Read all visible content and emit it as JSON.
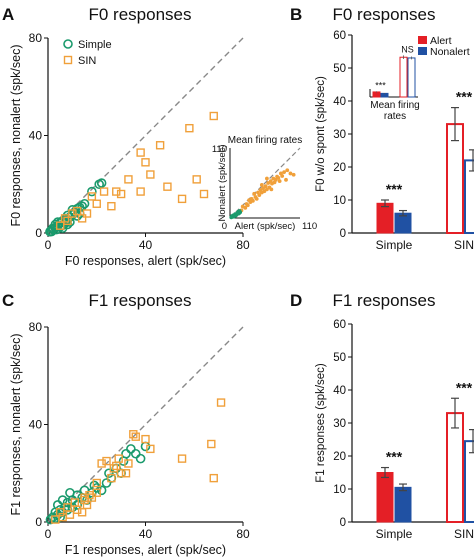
{
  "colors": {
    "simple": "#1a9a6c",
    "sin": "#f0a03a",
    "alert": "#e41f26",
    "nonalert": "#2051a3",
    "diagonal": "#888888",
    "axis": "#111111"
  },
  "chart_data": [
    {
      "id": "A",
      "panel_letter": "A",
      "type": "scatter",
      "title": "F0 responses",
      "xlabel": "F0 responses, alert (spk/sec)",
      "ylabel": "F0 responses, nonalert (spk/sec)",
      "xlim": [
        0,
        80
      ],
      "ylim": [
        0,
        80
      ],
      "xticks": [
        "0",
        "40",
        "80"
      ],
      "yticks": [
        "0",
        "40",
        "80"
      ],
      "legend": {
        "placement": "top-left",
        "entries": [
          "Simple",
          "SIN"
        ]
      },
      "series": [
        {
          "name": "Simple",
          "marker": "circle",
          "color": "#1a9a6c",
          "points": [
            [
              1,
              0.8
            ],
            [
              2,
              1.5
            ],
            [
              3,
              2
            ],
            [
              3.5,
              1.4
            ],
            [
              4,
              3
            ],
            [
              5,
              2.5
            ],
            [
              5,
              4.2
            ],
            [
              6,
              3.2
            ],
            [
              6,
              5
            ],
            [
              7,
              4
            ],
            [
              7,
              6
            ],
            [
              8,
              5.5
            ],
            [
              8,
              7.2
            ],
            [
              9,
              6.5
            ],
            [
              10,
              7.5
            ],
            [
              10,
              9.5
            ],
            [
              11,
              8.5
            ],
            [
              12,
              10
            ],
            [
              13,
              10.5
            ],
            [
              14,
              11
            ],
            [
              15,
              12
            ],
            [
              2,
              2
            ],
            [
              4,
              4.5
            ],
            [
              18,
              17
            ],
            [
              21,
              20
            ],
            [
              22,
              20.5
            ],
            [
              9,
              4.5
            ],
            [
              12,
              7
            ],
            [
              6,
              2
            ],
            [
              8,
              3.5
            ],
            [
              1.5,
              0.6
            ],
            [
              0.8,
              0.5
            ],
            [
              3,
              3.5
            ],
            [
              13,
              8
            ]
          ]
        },
        {
          "name": "SIN",
          "marker": "square",
          "color": "#f0a03a",
          "points": [
            [
              5,
              3
            ],
            [
              7,
              6
            ],
            [
              8,
              5
            ],
            [
              10,
              8
            ],
            [
              12,
              9
            ],
            [
              14,
              6
            ],
            [
              16,
              8
            ],
            [
              18,
              15
            ],
            [
              20,
              12
            ],
            [
              23,
              17
            ],
            [
              26,
              11
            ],
            [
              28,
              17
            ],
            [
              30,
              16
            ],
            [
              33,
              22
            ],
            [
              38,
              17
            ],
            [
              38,
              33
            ],
            [
              40,
              29
            ],
            [
              42,
              24
            ],
            [
              46,
              36
            ],
            [
              49,
              19
            ],
            [
              55,
              14
            ],
            [
              58,
              43
            ],
            [
              61,
              22
            ],
            [
              64,
              16
            ],
            [
              68,
              48
            ]
          ]
        }
      ],
      "inset": {
        "title": "Mean firing rates",
        "xlabel": "Alert (spk/sec)",
        "ylabel": "Nonalert (spk/sec)",
        "xlim": [
          0,
          110
        ],
        "ylim": [
          0,
          110
        ],
        "xtick_labels": [
          "0",
          "110"
        ],
        "ytick_labels": [
          "110"
        ],
        "simple_points": [
          [
            2,
            1
          ],
          [
            4,
            2
          ],
          [
            5,
            4
          ],
          [
            7,
            3
          ],
          [
            8,
            6
          ],
          [
            10,
            5
          ],
          [
            12,
            8
          ],
          [
            14,
            7
          ],
          [
            16,
            9
          ],
          [
            6,
            2
          ],
          [
            9,
            4
          ],
          [
            11,
            6
          ],
          [
            3,
            3
          ],
          [
            13,
            10
          ],
          [
            15,
            11
          ]
        ],
        "sin_points": [
          [
            18,
            12
          ],
          [
            20,
            18
          ],
          [
            24,
            16
          ],
          [
            26,
            22
          ],
          [
            28,
            20
          ],
          [
            30,
            28
          ],
          [
            32,
            25
          ],
          [
            34,
            30
          ],
          [
            36,
            27
          ],
          [
            38,
            38
          ],
          [
            40,
            33
          ],
          [
            42,
            30
          ],
          [
            44,
            40
          ],
          [
            46,
            36
          ],
          [
            48,
            44
          ],
          [
            50,
            40
          ],
          [
            52,
            47
          ],
          [
            54,
            42
          ],
          [
            56,
            50
          ],
          [
            58,
            45
          ],
          [
            60,
            55
          ],
          [
            62,
            48
          ],
          [
            64,
            58
          ],
          [
            66,
            54
          ],
          [
            68,
            62
          ],
          [
            70,
            56
          ],
          [
            72,
            60
          ],
          [
            74,
            65
          ],
          [
            76,
            63
          ],
          [
            78,
            58
          ],
          [
            80,
            70
          ],
          [
            82,
            66
          ],
          [
            85,
            72
          ],
          [
            88,
            60
          ],
          [
            90,
            75
          ],
          [
            95,
            70
          ],
          [
            100,
            68
          ],
          [
            58,
            62
          ],
          [
            50,
            52
          ],
          [
            65,
            45
          ]
        ]
      }
    },
    {
      "id": "B",
      "panel_letter": "B",
      "type": "bar",
      "title": "F0 responses",
      "ylabel": "F0 w/o spont (spk/sec)",
      "ylim": [
        0,
        60
      ],
      "yticks": [
        "0",
        "10",
        "20",
        "30",
        "40",
        "50",
        "60"
      ],
      "categories": [
        "Simple",
        "SIN"
      ],
      "series": [
        {
          "name": "Alert",
          "values": [
            9,
            33
          ],
          "errors": [
            1.0,
            5.0
          ]
        },
        {
          "name": "Nonalert",
          "values": [
            6,
            22
          ],
          "errors": [
            0.8,
            3.2
          ]
        }
      ],
      "significance": [
        "***",
        "***"
      ],
      "legend": {
        "placement": "top-right",
        "entries": [
          "Alert",
          "Nonalert"
        ]
      },
      "inset": {
        "title_line1": "Mean firing",
        "title_line2": "rates",
        "significance": [
          "***",
          "NS"
        ],
        "groups": [
          {
            "alert": 7,
            "nonalert": 5,
            "alert_err": 0.8,
            "nonalert_err": 0.6
          },
          {
            "alert": 55,
            "nonalert": 54,
            "alert_err": 2.5,
            "nonalert_err": 2.0
          }
        ],
        "ymax": 65
      }
    },
    {
      "id": "C",
      "panel_letter": "C",
      "type": "scatter",
      "title": "F1 responses",
      "xlabel": "F1 responses, alert (spk/sec)",
      "ylabel": "F1 responses, nonalert (spk/sec)",
      "xlim": [
        0,
        80
      ],
      "ylim": [
        0,
        80
      ],
      "xticks": [
        "0",
        "40",
        "80"
      ],
      "yticks": [
        "0",
        "40",
        "80"
      ],
      "series": [
        {
          "name": "Simple",
          "marker": "circle",
          "color": "#1a9a6c",
          "points": [
            [
              1,
              1
            ],
            [
              2,
              2
            ],
            [
              3,
              1.5
            ],
            [
              4,
              3
            ],
            [
              5,
              2
            ],
            [
              5,
              5
            ],
            [
              6,
              4
            ],
            [
              7,
              6
            ],
            [
              8,
              5
            ],
            [
              8,
              8
            ],
            [
              10,
              6
            ],
            [
              10,
              9
            ],
            [
              12,
              7
            ],
            [
              12,
              11
            ],
            [
              14,
              10
            ],
            [
              15,
              13
            ],
            [
              16,
              9
            ],
            [
              18,
              12
            ],
            [
              19,
              15
            ],
            [
              20,
              14
            ],
            [
              22,
              13
            ],
            [
              24,
              16
            ],
            [
              25,
              20
            ],
            [
              26,
              18
            ],
            [
              28,
              22
            ],
            [
              30,
              20
            ],
            [
              31,
              25
            ],
            [
              32,
              28
            ],
            [
              34,
              30
            ],
            [
              36,
              28
            ],
            [
              38,
              26
            ],
            [
              40,
              31
            ],
            [
              4,
              7
            ],
            [
              6,
              9
            ],
            [
              3,
              4
            ],
            [
              9,
              12
            ]
          ]
        },
        {
          "name": "SIN",
          "marker": "square",
          "color": "#f0a03a",
          "points": [
            [
              3,
              1
            ],
            [
              5,
              4
            ],
            [
              6,
              2
            ],
            [
              8,
              6
            ],
            [
              9,
              3
            ],
            [
              11,
              8
            ],
            [
              12,
              5
            ],
            [
              14,
              4
            ],
            [
              15,
              9
            ],
            [
              16,
              7
            ],
            [
              18,
              10
            ],
            [
              20,
              12
            ],
            [
              20,
              16
            ],
            [
              22,
              24
            ],
            [
              24,
              25
            ],
            [
              26,
              18
            ],
            [
              27,
              22
            ],
            [
              28,
              23
            ],
            [
              29,
              26
            ],
            [
              30,
              20
            ],
            [
              32,
              20
            ],
            [
              33,
              24
            ],
            [
              35,
              36
            ],
            [
              36,
              35
            ],
            [
              40,
              34
            ],
            [
              42,
              30
            ],
            [
              15,
              10
            ],
            [
              17,
              11
            ],
            [
              55,
              26
            ],
            [
              67,
              32
            ],
            [
              71,
              49
            ],
            [
              68,
              18
            ]
          ]
        }
      ]
    },
    {
      "id": "D",
      "panel_letter": "D",
      "type": "bar",
      "title": "F1 responses",
      "ylabel": "F1 responses (spk/sec)",
      "ylim": [
        0,
        60
      ],
      "yticks": [
        "0",
        "10",
        "20",
        "30",
        "40",
        "50",
        "60"
      ],
      "categories": [
        "Simple",
        "SIN"
      ],
      "series": [
        {
          "name": "Alert",
          "values": [
            15,
            33
          ],
          "errors": [
            1.5,
            4.5
          ]
        },
        {
          "name": "Nonalert",
          "values": [
            10.5,
            24.5
          ],
          "errors": [
            1.0,
            3.5
          ]
        }
      ],
      "significance": [
        "***",
        "***"
      ]
    }
  ]
}
